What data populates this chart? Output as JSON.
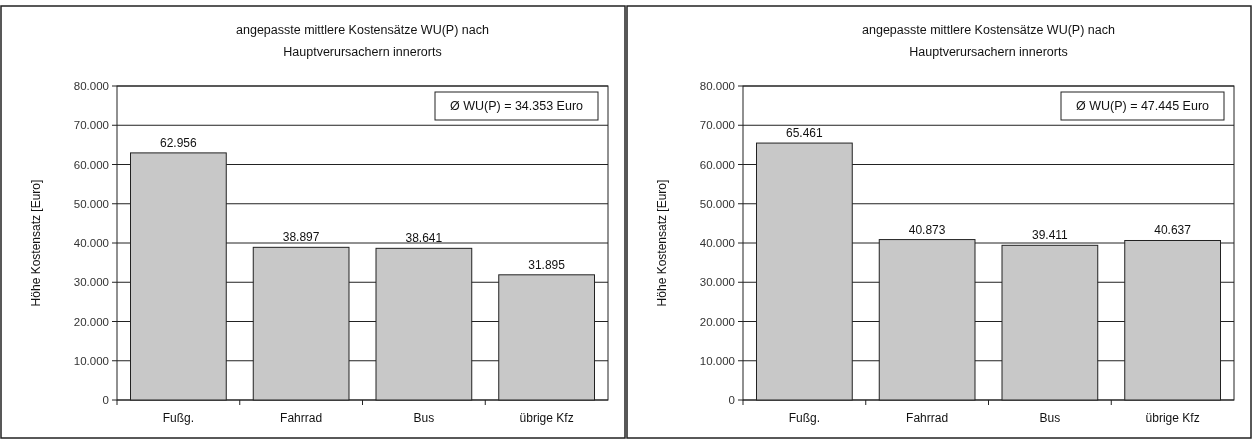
{
  "chart_data": [
    {
      "type": "bar",
      "title": "angepasste mittlere Kostensätze WU(P) nach\nHauptverursachern innerorts",
      "ylabel": "Höhe Kostensatz [Euro]",
      "categories": [
        "Fußg.",
        "Fahrrad",
        "Bus",
        "übrige Kfz"
      ],
      "values": [
        62956,
        38897,
        38641,
        31895
      ],
      "value_labels": [
        "62.956",
        "38.897",
        "38.641",
        "31.895"
      ],
      "color": "#c8c8c8",
      "ylim": [
        0,
        80000
      ],
      "yticks": [
        {
          "value": 0,
          "label": "0"
        },
        {
          "value": 10000,
          "label": "10.000"
        },
        {
          "value": 20000,
          "label": "20.000"
        },
        {
          "value": 30000,
          "label": "30.000"
        },
        {
          "value": 40000,
          "label": "40.000"
        },
        {
          "value": 50000,
          "label": "50.000"
        },
        {
          "value": 60000,
          "label": "60.000"
        },
        {
          "value": 70000,
          "label": "70.000"
        },
        {
          "value": 80000,
          "label": "80.000"
        }
      ],
      "grid": "y",
      "annotations": [
        "Ø WU(P) = 34.353 Euro"
      ]
    },
    {
      "type": "bar",
      "title": "angepasste mittlere Kostensätze WU(P) nach\nHauptverursachern innerorts",
      "ylabel": "Höhe Kostensatz [Euro]",
      "categories": [
        "Fußg.",
        "Fahrrad",
        "Bus",
        "übrige Kfz"
      ],
      "values": [
        65461,
        40873,
        39411,
        40637
      ],
      "value_labels": [
        "65.461",
        "40.873",
        "39.411",
        "40.637"
      ],
      "color": "#c8c8c8",
      "ylim": [
        0,
        80000
      ],
      "yticks": [
        {
          "value": 0,
          "label": "0"
        },
        {
          "value": 10000,
          "label": "10.000"
        },
        {
          "value": 20000,
          "label": "20.000"
        },
        {
          "value": 30000,
          "label": "30.000"
        },
        {
          "value": 40000,
          "label": "40.000"
        },
        {
          "value": 50000,
          "label": "50.000"
        },
        {
          "value": 60000,
          "label": "60.000"
        },
        {
          "value": 70000,
          "label": "70.000"
        },
        {
          "value": 80000,
          "label": "80.000"
        }
      ],
      "grid": "y",
      "annotations": [
        "Ø WU(P) = 47.445 Euro"
      ]
    }
  ]
}
